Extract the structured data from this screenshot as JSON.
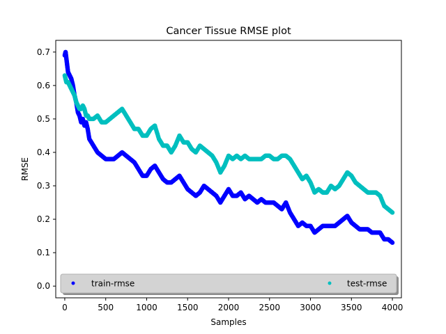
{
  "chart_data": {
    "type": "scatter",
    "title": "Cancer Tissue RMSE plot",
    "xlabel": "Samples",
    "ylabel": "RMSE",
    "xlim": [
      -110,
      4110
    ],
    "ylim": [
      -0.035,
      0.735
    ],
    "xticks": [
      0,
      500,
      1000,
      1500,
      2000,
      2500,
      3000,
      3500,
      4000
    ],
    "yticks": [
      0.0,
      0.1,
      0.2,
      0.3,
      0.4,
      0.5,
      0.6,
      0.7
    ],
    "ytick_labels": [
      "0.0",
      "0.1",
      "0.2",
      "0.3",
      "0.4",
      "0.5",
      "0.6",
      "0.7"
    ],
    "grid": false,
    "legend": {
      "placement": "lower-center",
      "columns": 2
    },
    "series": [
      {
        "name": "train-rmse",
        "color": "#0000ff",
        "points": [
          [
            0,
            0.69
          ],
          [
            10,
            0.7
          ],
          [
            20,
            0.68
          ],
          [
            30,
            0.66
          ],
          [
            40,
            0.64
          ],
          [
            60,
            0.63
          ],
          [
            80,
            0.62
          ],
          [
            100,
            0.6
          ],
          [
            120,
            0.57
          ],
          [
            140,
            0.55
          ],
          [
            160,
            0.52
          ],
          [
            180,
            0.51
          ],
          [
            200,
            0.49
          ],
          [
            220,
            0.5
          ],
          [
            240,
            0.48
          ],
          [
            260,
            0.49
          ],
          [
            280,
            0.47
          ],
          [
            300,
            0.44
          ],
          [
            350,
            0.42
          ],
          [
            400,
            0.4
          ],
          [
            450,
            0.39
          ],
          [
            500,
            0.38
          ],
          [
            550,
            0.38
          ],
          [
            600,
            0.38
          ],
          [
            650,
            0.39
          ],
          [
            700,
            0.4
          ],
          [
            750,
            0.39
          ],
          [
            800,
            0.38
          ],
          [
            850,
            0.37
          ],
          [
            900,
            0.35
          ],
          [
            950,
            0.33
          ],
          [
            1000,
            0.33
          ],
          [
            1050,
            0.35
          ],
          [
            1100,
            0.36
          ],
          [
            1150,
            0.34
          ],
          [
            1200,
            0.32
          ],
          [
            1250,
            0.31
          ],
          [
            1300,
            0.31
          ],
          [
            1350,
            0.32
          ],
          [
            1400,
            0.33
          ],
          [
            1450,
            0.31
          ],
          [
            1500,
            0.29
          ],
          [
            1550,
            0.28
          ],
          [
            1600,
            0.27
          ],
          [
            1650,
            0.28
          ],
          [
            1700,
            0.3
          ],
          [
            1750,
            0.29
          ],
          [
            1800,
            0.28
          ],
          [
            1850,
            0.27
          ],
          [
            1900,
            0.25
          ],
          [
            1950,
            0.27
          ],
          [
            2000,
            0.29
          ],
          [
            2050,
            0.27
          ],
          [
            2100,
            0.27
          ],
          [
            2150,
            0.28
          ],
          [
            2200,
            0.26
          ],
          [
            2250,
            0.27
          ],
          [
            2300,
            0.26
          ],
          [
            2350,
            0.25
          ],
          [
            2400,
            0.26
          ],
          [
            2450,
            0.25
          ],
          [
            2500,
            0.25
          ],
          [
            2550,
            0.25
          ],
          [
            2600,
            0.24
          ],
          [
            2650,
            0.23
          ],
          [
            2700,
            0.25
          ],
          [
            2750,
            0.22
          ],
          [
            2800,
            0.2
          ],
          [
            2850,
            0.18
          ],
          [
            2900,
            0.19
          ],
          [
            2950,
            0.18
          ],
          [
            3000,
            0.18
          ],
          [
            3050,
            0.16
          ],
          [
            3100,
            0.17
          ],
          [
            3150,
            0.18
          ],
          [
            3200,
            0.18
          ],
          [
            3250,
            0.18
          ],
          [
            3300,
            0.18
          ],
          [
            3350,
            0.19
          ],
          [
            3400,
            0.2
          ],
          [
            3450,
            0.21
          ],
          [
            3500,
            0.19
          ],
          [
            3550,
            0.18
          ],
          [
            3600,
            0.17
          ],
          [
            3650,
            0.17
          ],
          [
            3700,
            0.17
          ],
          [
            3750,
            0.16
          ],
          [
            3800,
            0.16
          ],
          [
            3850,
            0.16
          ],
          [
            3900,
            0.14
          ],
          [
            3950,
            0.14
          ],
          [
            4000,
            0.13
          ]
        ]
      },
      {
        "name": "test-rmse",
        "color": "#00bfbf",
        "points": [
          [
            0,
            0.63
          ],
          [
            10,
            0.62
          ],
          [
            20,
            0.61
          ],
          [
            40,
            0.61
          ],
          [
            60,
            0.6
          ],
          [
            80,
            0.59
          ],
          [
            100,
            0.58
          ],
          [
            120,
            0.57
          ],
          [
            140,
            0.55
          ],
          [
            160,
            0.54
          ],
          [
            180,
            0.53
          ],
          [
            200,
            0.53
          ],
          [
            220,
            0.54
          ],
          [
            240,
            0.53
          ],
          [
            260,
            0.51
          ],
          [
            280,
            0.51
          ],
          [
            300,
            0.5
          ],
          [
            350,
            0.5
          ],
          [
            400,
            0.51
          ],
          [
            450,
            0.49
          ],
          [
            500,
            0.49
          ],
          [
            550,
            0.5
          ],
          [
            600,
            0.51
          ],
          [
            650,
            0.52
          ],
          [
            700,
            0.53
          ],
          [
            750,
            0.51
          ],
          [
            800,
            0.49
          ],
          [
            850,
            0.47
          ],
          [
            900,
            0.47
          ],
          [
            950,
            0.45
          ],
          [
            1000,
            0.45
          ],
          [
            1050,
            0.47
          ],
          [
            1100,
            0.48
          ],
          [
            1150,
            0.44
          ],
          [
            1200,
            0.42
          ],
          [
            1250,
            0.42
          ],
          [
            1300,
            0.4
          ],
          [
            1350,
            0.42
          ],
          [
            1400,
            0.45
          ],
          [
            1450,
            0.43
          ],
          [
            1500,
            0.43
          ],
          [
            1550,
            0.41
          ],
          [
            1600,
            0.4
          ],
          [
            1650,
            0.42
          ],
          [
            1700,
            0.41
          ],
          [
            1750,
            0.4
          ],
          [
            1800,
            0.39
          ],
          [
            1850,
            0.37
          ],
          [
            1900,
            0.34
          ],
          [
            1950,
            0.36
          ],
          [
            2000,
            0.39
          ],
          [
            2050,
            0.38
          ],
          [
            2100,
            0.39
          ],
          [
            2150,
            0.38
          ],
          [
            2200,
            0.39
          ],
          [
            2250,
            0.38
          ],
          [
            2300,
            0.38
          ],
          [
            2350,
            0.38
          ],
          [
            2400,
            0.38
          ],
          [
            2450,
            0.39
          ],
          [
            2500,
            0.39
          ],
          [
            2550,
            0.38
          ],
          [
            2600,
            0.38
          ],
          [
            2650,
            0.39
          ],
          [
            2700,
            0.39
          ],
          [
            2750,
            0.38
          ],
          [
            2800,
            0.36
          ],
          [
            2850,
            0.34
          ],
          [
            2900,
            0.32
          ],
          [
            2950,
            0.33
          ],
          [
            3000,
            0.31
          ],
          [
            3050,
            0.28
          ],
          [
            3100,
            0.29
          ],
          [
            3150,
            0.28
          ],
          [
            3200,
            0.28
          ],
          [
            3250,
            0.3
          ],
          [
            3300,
            0.29
          ],
          [
            3350,
            0.3
          ],
          [
            3400,
            0.32
          ],
          [
            3450,
            0.34
          ],
          [
            3500,
            0.33
          ],
          [
            3550,
            0.31
          ],
          [
            3600,
            0.3
          ],
          [
            3650,
            0.29
          ],
          [
            3700,
            0.28
          ],
          [
            3750,
            0.28
          ],
          [
            3800,
            0.28
          ],
          [
            3850,
            0.27
          ],
          [
            3900,
            0.24
          ],
          [
            3950,
            0.23
          ],
          [
            4000,
            0.22
          ]
        ]
      }
    ]
  }
}
